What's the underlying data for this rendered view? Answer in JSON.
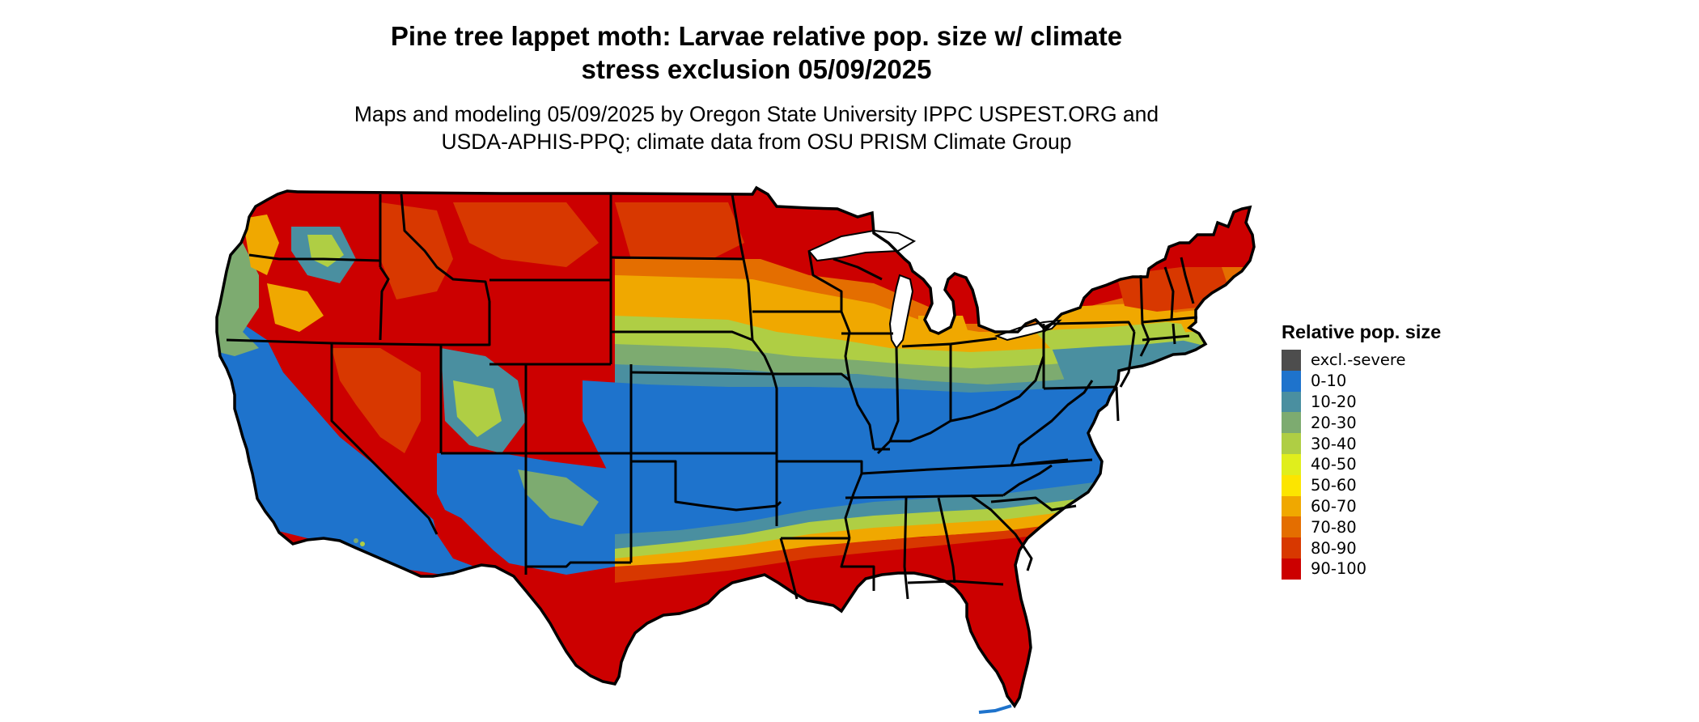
{
  "title": {
    "line1": "Pine tree lappet moth: Larvae relative pop. size w/ climate",
    "line2": "stress exclusion 05/09/2025"
  },
  "subtitle": {
    "line1": "Maps and modeling 05/09/2025 by Oregon State University IPPC USPEST.ORG and",
    "line2": "USDA-APHIS-PPQ; climate data from OSU PRISM Climate Group"
  },
  "map": {
    "region": "Contiguous United States",
    "variable": "Larvae relative population size",
    "colors": {
      "excl_severe": "#4d4d4d",
      "c0_10": "#1e73cc",
      "c10_20": "#4a8fa0",
      "c20_30": "#7dab70",
      "c30_40": "#afce44",
      "c40_50": "#e0ee1c",
      "c50_60": "#fce500",
      "c60_70": "#f0a800",
      "c70_80": "#e46e00",
      "c80_90": "#d83800",
      "c90_100": "#cc0000",
      "state_border": "#000000"
    }
  },
  "legend": {
    "title": "Relative pop. size",
    "items": [
      {
        "label": "excl.-severe",
        "color": "#4d4d4d"
      },
      {
        "label": "0-10",
        "color": "#1e73cc"
      },
      {
        "label": "10-20",
        "color": "#4a8fa0"
      },
      {
        "label": "20-30",
        "color": "#7dab70"
      },
      {
        "label": "30-40",
        "color": "#afce44"
      },
      {
        "label": "40-50",
        "color": "#e0ee1c"
      },
      {
        "label": "50-60",
        "color": "#fce500"
      },
      {
        "label": "60-70",
        "color": "#f0a800"
      },
      {
        "label": "70-80",
        "color": "#e46e00"
      },
      {
        "label": "80-90",
        "color": "#d83800"
      },
      {
        "label": "90-100",
        "color": "#cc0000"
      }
    ]
  }
}
